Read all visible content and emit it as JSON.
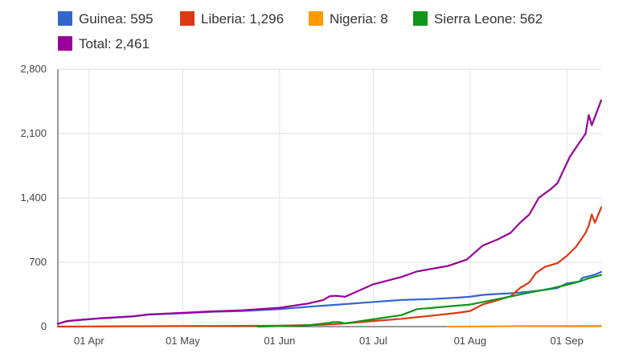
{
  "chart_data": {
    "type": "line",
    "title": "",
    "xlabel": "",
    "ylabel": "",
    "x_axis": {
      "type": "date",
      "range": [
        "2014-03-22",
        "2014-09-12"
      ],
      "ticks": [
        {
          "date": "2014-04-01",
          "label": "01 Apr"
        },
        {
          "date": "2014-05-01",
          "label": "01 May"
        },
        {
          "date": "2014-06-01",
          "label": "01 Jun"
        },
        {
          "date": "2014-07-01",
          "label": "01 Jul"
        },
        {
          "date": "2014-08-01",
          "label": "01 Aug"
        },
        {
          "date": "2014-09-01",
          "label": "01 Sep"
        }
      ]
    },
    "y_axis": {
      "range": [
        0,
        2800
      ],
      "ticks": [
        {
          "value": 0,
          "label": "0"
        },
        {
          "value": 700,
          "label": "700"
        },
        {
          "value": 1400,
          "label": "1,400"
        },
        {
          "value": 2100,
          "label": "2,100"
        },
        {
          "value": 2800,
          "label": "2,800"
        }
      ]
    },
    "grid": true,
    "legend_position": "top",
    "series": [
      {
        "name": "Guinea",
        "legend_label": "Guinea: 595",
        "color": "#3366cc",
        "points": [
          [
            "2014-03-22",
            30
          ],
          [
            "2014-03-25",
            60
          ],
          [
            "2014-03-30",
            75
          ],
          [
            "2014-04-05",
            90
          ],
          [
            "2014-04-10",
            100
          ],
          [
            "2014-04-15",
            110
          ],
          [
            "2014-04-20",
            130
          ],
          [
            "2014-05-01",
            145
          ],
          [
            "2014-05-10",
            160
          ],
          [
            "2014-05-20",
            170
          ],
          [
            "2014-06-01",
            190
          ],
          [
            "2014-06-10",
            215
          ],
          [
            "2014-06-20",
            240
          ],
          [
            "2014-06-30",
            265
          ],
          [
            "2014-07-10",
            290
          ],
          [
            "2014-07-20",
            300
          ],
          [
            "2014-07-28",
            315
          ],
          [
            "2014-08-01",
            325
          ],
          [
            "2014-08-05",
            345
          ],
          [
            "2014-08-10",
            355
          ],
          [
            "2014-08-15",
            365
          ],
          [
            "2014-08-20",
            380
          ],
          [
            "2014-08-25",
            400
          ],
          [
            "2014-08-29",
            420
          ],
          [
            "2014-09-01",
            470
          ],
          [
            "2014-09-05",
            490
          ],
          [
            "2014-09-06",
            530
          ],
          [
            "2014-09-10",
            565
          ],
          [
            "2014-09-12",
            595
          ]
        ]
      },
      {
        "name": "Liberia",
        "legend_label": "Liberia: 1,296",
        "color": "#dc3912",
        "points": [
          [
            "2014-03-22",
            0
          ],
          [
            "2014-04-01",
            2
          ],
          [
            "2014-05-01",
            5
          ],
          [
            "2014-06-01",
            10
          ],
          [
            "2014-06-15",
            20
          ],
          [
            "2014-06-20",
            30
          ],
          [
            "2014-07-01",
            60
          ],
          [
            "2014-07-10",
            85
          ],
          [
            "2014-07-20",
            120
          ],
          [
            "2014-07-28",
            150
          ],
          [
            "2014-08-01",
            170
          ],
          [
            "2014-08-05",
            240
          ],
          [
            "2014-08-10",
            290
          ],
          [
            "2014-08-14",
            330
          ],
          [
            "2014-08-17",
            420
          ],
          [
            "2014-08-20",
            480
          ],
          [
            "2014-08-22",
            580
          ],
          [
            "2014-08-25",
            650
          ],
          [
            "2014-08-29",
            690
          ],
          [
            "2014-09-01",
            770
          ],
          [
            "2014-09-04",
            870
          ],
          [
            "2014-09-07",
            1020
          ],
          [
            "2014-09-08",
            1100
          ],
          [
            "2014-09-09",
            1220
          ],
          [
            "2014-09-10",
            1130
          ],
          [
            "2014-09-12",
            1296
          ]
        ]
      },
      {
        "name": "Nigeria",
        "legend_label": "Nigeria: 8",
        "color": "#ff9900",
        "points": [
          [
            "2014-07-25",
            0
          ],
          [
            "2014-08-05",
            2
          ],
          [
            "2014-08-15",
            5
          ],
          [
            "2014-09-01",
            7
          ],
          [
            "2014-09-12",
            8
          ]
        ]
      },
      {
        "name": "Sierra Leone",
        "legend_label": "Sierra Leone: 562",
        "color": "#109618",
        "points": [
          [
            "2014-05-25",
            0
          ],
          [
            "2014-06-01",
            5
          ],
          [
            "2014-06-10",
            15
          ],
          [
            "2014-06-17",
            40
          ],
          [
            "2014-06-18",
            50
          ],
          [
            "2014-06-20",
            50
          ],
          [
            "2014-06-22",
            35
          ],
          [
            "2014-07-01",
            80
          ],
          [
            "2014-07-05",
            100
          ],
          [
            "2014-07-10",
            125
          ],
          [
            "2014-07-15",
            190
          ],
          [
            "2014-07-20",
            205
          ],
          [
            "2014-07-25",
            220
          ],
          [
            "2014-08-01",
            240
          ],
          [
            "2014-08-10",
            300
          ],
          [
            "2014-08-20",
            370
          ],
          [
            "2014-08-27",
            415
          ],
          [
            "2014-09-01",
            455
          ],
          [
            "2014-09-05",
            490
          ],
          [
            "2014-09-08",
            525
          ],
          [
            "2014-09-12",
            562
          ]
        ]
      },
      {
        "name": "Total",
        "legend_label": "Total: 2,461",
        "color": "#990099",
        "points": [
          [
            "2014-03-22",
            30
          ],
          [
            "2014-03-25",
            60
          ],
          [
            "2014-03-30",
            75
          ],
          [
            "2014-04-05",
            92
          ],
          [
            "2014-04-10",
            102
          ],
          [
            "2014-04-15",
            112
          ],
          [
            "2014-04-20",
            133
          ],
          [
            "2014-05-01",
            150
          ],
          [
            "2014-05-10",
            165
          ],
          [
            "2014-05-20",
            178
          ],
          [
            "2014-06-01",
            205
          ],
          [
            "2014-06-10",
            250
          ],
          [
            "2014-06-15",
            290
          ],
          [
            "2014-06-17",
            330
          ],
          [
            "2014-06-19",
            335
          ],
          [
            "2014-06-22",
            325
          ],
          [
            "2014-07-01",
            460
          ],
          [
            "2014-07-10",
            540
          ],
          [
            "2014-07-15",
            600
          ],
          [
            "2014-07-20",
            630
          ],
          [
            "2014-07-25",
            660
          ],
          [
            "2014-07-31",
            730
          ],
          [
            "2014-08-05",
            880
          ],
          [
            "2014-08-10",
            950
          ],
          [
            "2014-08-14",
            1020
          ],
          [
            "2014-08-17",
            1130
          ],
          [
            "2014-08-20",
            1220
          ],
          [
            "2014-08-23",
            1400
          ],
          [
            "2014-08-27",
            1500
          ],
          [
            "2014-08-29",
            1560
          ],
          [
            "2014-09-02",
            1850
          ],
          [
            "2014-09-05",
            2000
          ],
          [
            "2014-09-07",
            2100
          ],
          [
            "2014-09-08",
            2300
          ],
          [
            "2014-09-09",
            2190
          ],
          [
            "2014-09-12",
            2461
          ]
        ]
      }
    ]
  }
}
